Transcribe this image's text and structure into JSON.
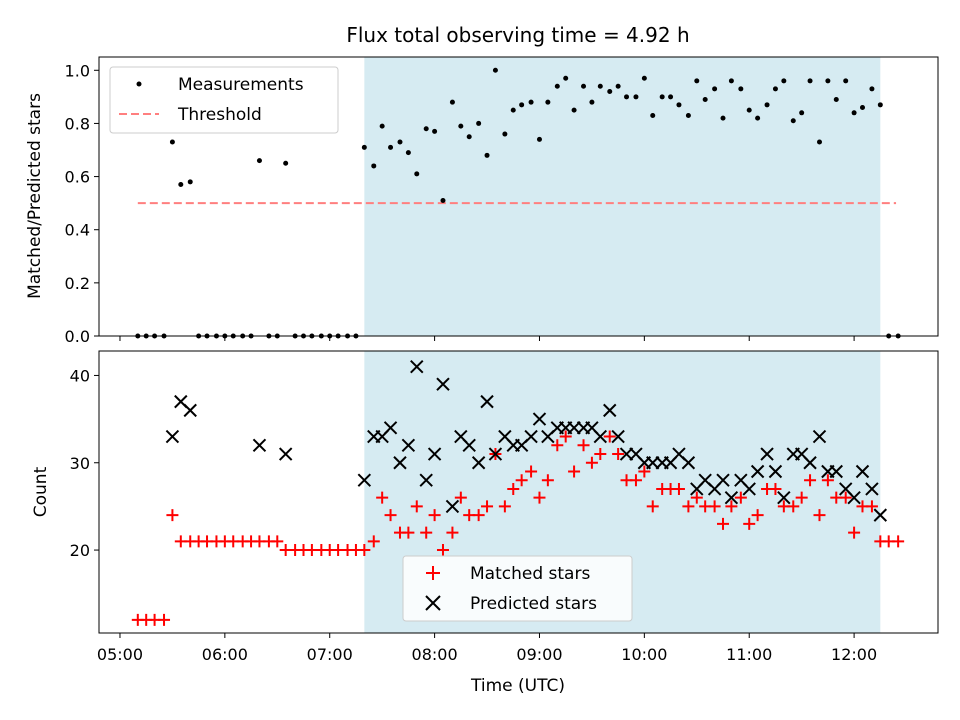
{
  "chart_data": [
    {
      "type": "scatter",
      "title": "Flux total observing time = 4.92 h",
      "xlabel": "",
      "ylabel": "Matched/Predicted stars",
      "ylim": [
        0,
        1.05
      ],
      "xlim": [
        4.8,
        12.8
      ],
      "yticks": [
        "0.0",
        "0.2",
        "0.4",
        "0.6",
        "0.8",
        "1.0"
      ],
      "ytick_values": [
        0,
        0.2,
        0.4,
        0.6,
        0.8,
        1.0
      ],
      "shaded_range": [
        7.33,
        12.25
      ],
      "legend": {
        "position": "top-left",
        "entries": [
          "Measurements",
          "Threshold"
        ]
      },
      "threshold": {
        "name": "Threshold",
        "value": 0.5,
        "x_range": [
          5.17,
          12.4
        ],
        "color": "#ff7f7f"
      },
      "series": [
        {
          "name": "Measurements",
          "color": "#000000",
          "points": [
            [
              5.17,
              0
            ],
            [
              5.25,
              0
            ],
            [
              5.33,
              0
            ],
            [
              5.42,
              0
            ],
            [
              5.5,
              0.73
            ],
            [
              5.58,
              0.57
            ],
            [
              5.67,
              0.58
            ],
            [
              5.75,
              0
            ],
            [
              5.83,
              0
            ],
            [
              5.92,
              0
            ],
            [
              6,
              0
            ],
            [
              6.08,
              0
            ],
            [
              6.17,
              0
            ],
            [
              6.25,
              0
            ],
            [
              6.33,
              0.66
            ],
            [
              6.42,
              0
            ],
            [
              6.5,
              0
            ],
            [
              6.58,
              0.65
            ],
            [
              6.67,
              0
            ],
            [
              6.75,
              0
            ],
            [
              6.83,
              0
            ],
            [
              6.92,
              0
            ],
            [
              7,
              0
            ],
            [
              7.08,
              0
            ],
            [
              7.17,
              0
            ],
            [
              7.25,
              0
            ],
            [
              7.33,
              0.71
            ],
            [
              7.42,
              0.64
            ],
            [
              7.5,
              0.79
            ],
            [
              7.58,
              0.71
            ],
            [
              7.67,
              0.73
            ],
            [
              7.75,
              0.69
            ],
            [
              7.83,
              0.61
            ],
            [
              7.92,
              0.78
            ],
            [
              8,
              0.77
            ],
            [
              8.08,
              0.51
            ],
            [
              8.17,
              0.88
            ],
            [
              8.25,
              0.79
            ],
            [
              8.33,
              0.75
            ],
            [
              8.42,
              0.8
            ],
            [
              8.5,
              0.68
            ],
            [
              8.58,
              1.0
            ],
            [
              8.67,
              0.76
            ],
            [
              8.75,
              0.85
            ],
            [
              8.83,
              0.87
            ],
            [
              8.92,
              0.88
            ],
            [
              9,
              0.74
            ],
            [
              9.08,
              0.88
            ],
            [
              9.17,
              0.94
            ],
            [
              9.25,
              0.97
            ],
            [
              9.33,
              0.85
            ],
            [
              9.42,
              0.94
            ],
            [
              9.5,
              0.88
            ],
            [
              9.58,
              0.94
            ],
            [
              9.67,
              0.92
            ],
            [
              9.75,
              0.94
            ],
            [
              9.83,
              0.9
            ],
            [
              9.92,
              0.9
            ],
            [
              10,
              0.97
            ],
            [
              10.08,
              0.83
            ],
            [
              10.17,
              0.9
            ],
            [
              10.25,
              0.9
            ],
            [
              10.33,
              0.87
            ],
            [
              10.42,
              0.83
            ],
            [
              10.5,
              0.96
            ],
            [
              10.58,
              0.89
            ],
            [
              10.67,
              0.93
            ],
            [
              10.75,
              0.82
            ],
            [
              10.83,
              0.96
            ],
            [
              10.92,
              0.93
            ],
            [
              11,
              0.85
            ],
            [
              11.08,
              0.82
            ],
            [
              11.17,
              0.87
            ],
            [
              11.25,
              0.93
            ],
            [
              11.33,
              0.96
            ],
            [
              11.42,
              0.81
            ],
            [
              11.5,
              0.84
            ],
            [
              11.58,
              0.96
            ],
            [
              11.67,
              0.73
            ],
            [
              11.75,
              0.96
            ],
            [
              11.83,
              0.89
            ],
            [
              11.92,
              0.96
            ],
            [
              12,
              0.84
            ],
            [
              12.08,
              0.86
            ],
            [
              12.17,
              0.93
            ],
            [
              12.25,
              0.87
            ],
            [
              12.33,
              0
            ],
            [
              12.42,
              0
            ]
          ]
        }
      ]
    },
    {
      "type": "scatter",
      "title": "",
      "xlabel": "Time (UTC)",
      "ylabel": "Count",
      "ylim": [
        10.5,
        42.8
      ],
      "xlim": [
        4.8,
        12.8
      ],
      "yticks": [
        "20",
        "30",
        "40"
      ],
      "ytick_values": [
        20,
        30,
        40
      ],
      "xticks": [
        "05:00",
        "06:00",
        "07:00",
        "08:00",
        "09:00",
        "10:00",
        "11:00",
        "12:00"
      ],
      "xtick_values": [
        5,
        6,
        7,
        8,
        9,
        10,
        11,
        12
      ],
      "shaded_range": [
        7.33,
        12.25
      ],
      "legend": {
        "position": "bottom-center",
        "entries": [
          "Matched stars",
          "Predicted stars"
        ]
      },
      "series": [
        {
          "name": "Matched stars",
          "marker": "plus",
          "color": "#ff0000",
          "points": [
            [
              5.17,
              12
            ],
            [
              5.25,
              12
            ],
            [
              5.33,
              12
            ],
            [
              5.42,
              12
            ],
            [
              5.5,
              24
            ],
            [
              5.58,
              21
            ],
            [
              5.67,
              21
            ],
            [
              5.75,
              21
            ],
            [
              5.83,
              21
            ],
            [
              5.92,
              21
            ],
            [
              6,
              21
            ],
            [
              6.08,
              21
            ],
            [
              6.17,
              21
            ],
            [
              6.25,
              21
            ],
            [
              6.33,
              21
            ],
            [
              6.42,
              21
            ],
            [
              6.5,
              21
            ],
            [
              6.58,
              20
            ],
            [
              6.67,
              20
            ],
            [
              6.75,
              20
            ],
            [
              6.83,
              20
            ],
            [
              6.92,
              20
            ],
            [
              7,
              20
            ],
            [
              7.08,
              20
            ],
            [
              7.17,
              20
            ],
            [
              7.25,
              20
            ],
            [
              7.33,
              20
            ],
            [
              7.42,
              21
            ],
            [
              7.5,
              26
            ],
            [
              7.58,
              24
            ],
            [
              7.67,
              22
            ],
            [
              7.75,
              22
            ],
            [
              7.83,
              25
            ],
            [
              7.92,
              22
            ],
            [
              8,
              24
            ],
            [
              8.08,
              20
            ],
            [
              8.17,
              22
            ],
            [
              8.25,
              26
            ],
            [
              8.33,
              24
            ],
            [
              8.42,
              24
            ],
            [
              8.5,
              25
            ],
            [
              8.58,
              31
            ],
            [
              8.67,
              25
            ],
            [
              8.75,
              27
            ],
            [
              8.83,
              28
            ],
            [
              8.92,
              29
            ],
            [
              9,
              26
            ],
            [
              9.08,
              28
            ],
            [
              9.17,
              32
            ],
            [
              9.25,
              33
            ],
            [
              9.33,
              29
            ],
            [
              9.42,
              32
            ],
            [
              9.5,
              30
            ],
            [
              9.58,
              31
            ],
            [
              9.67,
              33
            ],
            [
              9.75,
              31
            ],
            [
              9.83,
              28
            ],
            [
              9.92,
              28
            ],
            [
              10,
              29
            ],
            [
              10.08,
              25
            ],
            [
              10.17,
              27
            ],
            [
              10.25,
              27
            ],
            [
              10.33,
              27
            ],
            [
              10.42,
              25
            ],
            [
              10.5,
              26
            ],
            [
              10.58,
              25
            ],
            [
              10.67,
              25
            ],
            [
              10.75,
              23
            ],
            [
              10.83,
              25
            ],
            [
              10.92,
              26
            ],
            [
              11,
              23
            ],
            [
              11.08,
              24
            ],
            [
              11.17,
              27
            ],
            [
              11.25,
              27
            ],
            [
              11.33,
              25
            ],
            [
              11.42,
              25
            ],
            [
              11.5,
              26
            ],
            [
              11.58,
              28
            ],
            [
              11.67,
              24
            ],
            [
              11.75,
              28
            ],
            [
              11.83,
              26
            ],
            [
              11.92,
              26
            ],
            [
              12,
              22
            ],
            [
              12.08,
              25
            ],
            [
              12.17,
              25
            ],
            [
              12.25,
              21
            ],
            [
              12.33,
              21
            ],
            [
              12.42,
              21
            ]
          ]
        },
        {
          "name": "Predicted stars",
          "marker": "x",
          "color": "#000000",
          "points": [
            [
              5.5,
              33
            ],
            [
              5.58,
              37
            ],
            [
              5.67,
              36
            ],
            [
              6.33,
              32
            ],
            [
              6.58,
              31
            ],
            [
              7.33,
              28
            ],
            [
              7.42,
              33
            ],
            [
              7.5,
              33
            ],
            [
              7.58,
              34
            ],
            [
              7.67,
              30
            ],
            [
              7.75,
              32
            ],
            [
              7.83,
              41
            ],
            [
              7.92,
              28
            ],
            [
              8,
              31
            ],
            [
              8.08,
              39
            ],
            [
              8.17,
              25
            ],
            [
              8.25,
              33
            ],
            [
              8.33,
              32
            ],
            [
              8.42,
              30
            ],
            [
              8.5,
              37
            ],
            [
              8.58,
              31
            ],
            [
              8.67,
              33
            ],
            [
              8.75,
              32
            ],
            [
              8.83,
              32
            ],
            [
              8.92,
              33
            ],
            [
              9,
              35
            ],
            [
              9.08,
              33
            ],
            [
              9.17,
              34
            ],
            [
              9.25,
              34
            ],
            [
              9.33,
              34
            ],
            [
              9.42,
              34
            ],
            [
              9.5,
              34
            ],
            [
              9.58,
              33
            ],
            [
              9.67,
              36
            ],
            [
              9.75,
              33
            ],
            [
              9.83,
              31
            ],
            [
              9.92,
              31
            ],
            [
              10,
              30
            ],
            [
              10.08,
              30
            ],
            [
              10.17,
              30
            ],
            [
              10.25,
              30
            ],
            [
              10.33,
              31
            ],
            [
              10.42,
              30
            ],
            [
              10.5,
              27
            ],
            [
              10.58,
              28
            ],
            [
              10.67,
              27
            ],
            [
              10.75,
              28
            ],
            [
              10.83,
              26
            ],
            [
              10.92,
              28
            ],
            [
              11,
              27
            ],
            [
              11.08,
              29
            ],
            [
              11.17,
              31
            ],
            [
              11.25,
              29
            ],
            [
              11.33,
              26
            ],
            [
              11.42,
              31
            ],
            [
              11.5,
              31
            ],
            [
              11.58,
              30
            ],
            [
              11.67,
              33
            ],
            [
              11.75,
              29
            ],
            [
              11.83,
              29
            ],
            [
              11.92,
              27
            ],
            [
              12,
              26
            ],
            [
              12.08,
              29
            ],
            [
              12.17,
              27
            ],
            [
              12.25,
              24
            ]
          ]
        }
      ]
    }
  ]
}
